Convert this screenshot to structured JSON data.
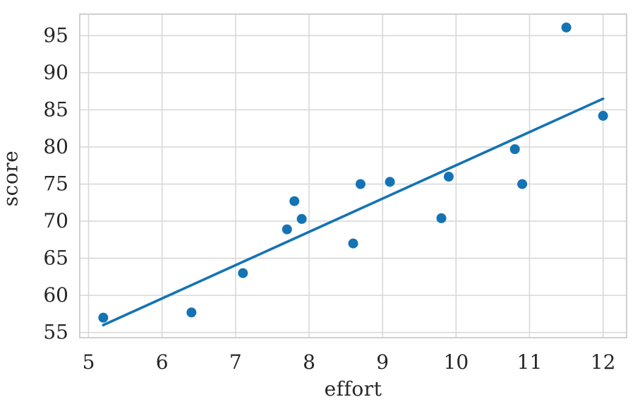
{
  "chart_data": {
    "type": "scatter",
    "title": "",
    "xlabel": "effort",
    "ylabel": "score",
    "xlim": [
      4.88,
      12.32
    ],
    "ylim": [
      54.3,
      97.9
    ],
    "x_ticks": [
      5,
      6,
      7,
      8,
      9,
      10,
      11,
      12
    ],
    "y_ticks": [
      55,
      60,
      65,
      70,
      75,
      80,
      85,
      90,
      95
    ],
    "grid": true,
    "legend": null,
    "series": [
      {
        "name": "observations",
        "type": "scatter",
        "marker": "circle",
        "color": "#1473b4",
        "points": [
          [
            5.2,
            57.0
          ],
          [
            6.4,
            57.7
          ],
          [
            7.1,
            63.0
          ],
          [
            7.7,
            68.9
          ],
          [
            7.8,
            72.7
          ],
          [
            7.9,
            70.3
          ],
          [
            8.6,
            67.0
          ],
          [
            8.7,
            75.0
          ],
          [
            9.1,
            75.3
          ],
          [
            9.8,
            70.4
          ],
          [
            9.9,
            76.0
          ],
          [
            10.8,
            79.7
          ],
          [
            10.9,
            75.0
          ],
          [
            11.5,
            96.1
          ],
          [
            12.0,
            84.2
          ]
        ]
      },
      {
        "name": "regression-line",
        "type": "line",
        "color": "#1473b4",
        "points": [
          [
            5.2,
            56.0
          ],
          [
            12.0,
            86.5
          ]
        ]
      }
    ],
    "colors": {
      "grid": "#d8d8d8",
      "spine": "#d0d0d0",
      "text": "#262626",
      "background": "#ffffff",
      "accent": "#1473b4"
    }
  }
}
